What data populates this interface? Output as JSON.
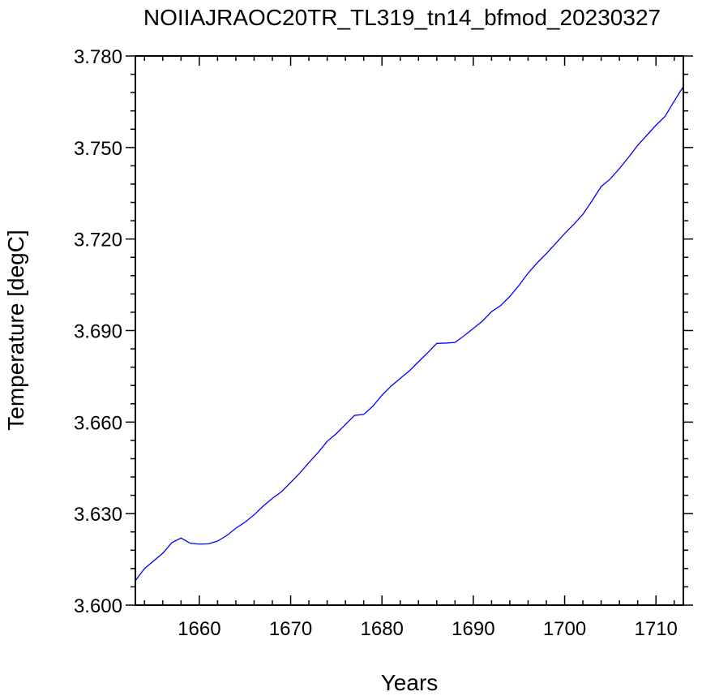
{
  "chart_data": {
    "type": "line",
    "title": "NOIIAJRAOC20TR_TL319_tn14_bfmod_20230327",
    "xlabel": "Years",
    "ylabel": "Temperature [degC]",
    "xlim": [
      1653,
      1713
    ],
    "ylim": [
      3.6,
      3.78
    ],
    "x_ticks": [
      1660,
      1670,
      1680,
      1690,
      1700,
      1710
    ],
    "x_tick_labels": [
      "1660",
      "1670",
      "1680",
      "1690",
      "1700",
      "1710"
    ],
    "y_ticks": [
      3.6,
      3.63,
      3.66,
      3.69,
      3.72,
      3.75,
      3.78
    ],
    "y_tick_labels": [
      "3.600",
      "3.630",
      "3.660",
      "3.690",
      "3.720",
      "3.750",
      "3.780"
    ],
    "grid": false,
    "line_color": "#0000ff",
    "series": [
      {
        "x": [
          1653,
          1654,
          1655,
          1656,
          1657,
          1658,
          1659,
          1660,
          1661,
          1662,
          1663,
          1664,
          1665,
          1666,
          1667,
          1668,
          1669,
          1670,
          1671,
          1672,
          1673,
          1674,
          1675,
          1676,
          1677,
          1678,
          1679,
          1680,
          1681,
          1682,
          1683,
          1684,
          1685,
          1686,
          1687,
          1688,
          1689,
          1690,
          1691,
          1692,
          1693,
          1694,
          1695,
          1696,
          1697,
          1698,
          1699,
          1700,
          1701,
          1702,
          1703,
          1704,
          1705,
          1706,
          1707,
          1708,
          1709,
          1710,
          1711,
          1712,
          1713
        ],
        "values": [
          3.608,
          3.612,
          3.6145,
          3.617,
          3.6205,
          3.622,
          3.6203,
          3.62,
          3.6201,
          3.621,
          3.6228,
          3.6252,
          3.6272,
          3.6296,
          3.6325,
          3.635,
          3.6372,
          3.6402,
          3.6433,
          3.6467,
          3.65,
          3.6537,
          3.6562,
          3.6592,
          3.6622,
          3.6625,
          3.6652,
          3.6688,
          3.6718,
          3.6743,
          3.6768,
          3.6798,
          3.6827,
          3.6858,
          3.6859,
          3.6861,
          3.6883,
          3.6907,
          3.6931,
          3.6962,
          3.6982,
          3.7012,
          3.7048,
          3.7088,
          3.7122,
          3.7152,
          3.7185,
          3.7218,
          3.7248,
          3.7281,
          3.7325,
          3.7372,
          3.7397,
          3.7431,
          3.7468,
          3.7507,
          3.754,
          3.7573,
          3.7602,
          3.7652,
          3.77
        ]
      }
    ]
  }
}
